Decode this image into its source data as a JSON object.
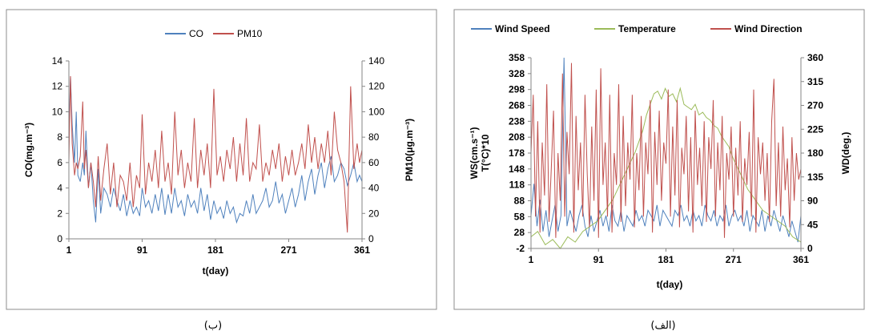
{
  "chart_data": [
    {
      "type": "line",
      "caption": "(ب)",
      "xlabel": "t(day)",
      "ylabel": "CO(mg.m⁻³)",
      "y2label": "PM10(μg.m⁻³)",
      "xlim": [
        1,
        361
      ],
      "ylim": [
        0,
        14
      ],
      "y2lim": [
        0,
        140
      ],
      "xticks": [
        "1",
        "91",
        "181",
        "271",
        "361"
      ],
      "yticks": [
        "0",
        "2",
        "4",
        "6",
        "8",
        "10",
        "12",
        "14"
      ],
      "y2ticks": [
        "0",
        "20",
        "40",
        "60",
        "80",
        "100",
        "120",
        "140"
      ],
      "grid": false,
      "legend_position": "top",
      "series": [
        {
          "name": "CO",
          "axis": "left",
          "color": "#4f81bd",
          "x": [
            1,
            3,
            5,
            8,
            10,
            12,
            15,
            18,
            20,
            22,
            25,
            28,
            31,
            34,
            37,
            40,
            44,
            48,
            52,
            56,
            60,
            64,
            68,
            72,
            76,
            80,
            84,
            88,
            91,
            95,
            99,
            103,
            107,
            111,
            115,
            119,
            123,
            127,
            131,
            135,
            139,
            143,
            147,
            151,
            155,
            159,
            163,
            167,
            171,
            175,
            179,
            183,
            187,
            191,
            195,
            199,
            203,
            207,
            211,
            215,
            219,
            223,
            227,
            231,
            235,
            239,
            243,
            247,
            251,
            255,
            259,
            263,
            267,
            271,
            275,
            279,
            283,
            287,
            291,
            295,
            299,
            303,
            307,
            311,
            315,
            319,
            323,
            327,
            331,
            335,
            339,
            343,
            347,
            351,
            355,
            358,
            361
          ],
          "values": [
            8,
            12.8,
            9,
            6,
            10,
            5,
            4.5,
            6,
            5,
            8.5,
            4,
            6,
            3,
            1.3,
            5.5,
            2,
            4,
            3.5,
            2.5,
            4,
            3,
            2.2,
            3.5,
            1.8,
            3,
            2,
            2.5,
            1.8,
            4,
            2.5,
            3,
            2,
            3.5,
            2.2,
            4,
            1.9,
            3.5,
            2,
            4,
            2.5,
            3,
            1.8,
            3.5,
            2.5,
            3,
            2,
            4,
            2.2,
            3.5,
            1.5,
            3,
            2,
            2.5,
            1.6,
            3,
            2,
            2.5,
            1.3,
            2,
            1.8,
            3,
            2,
            3.5,
            2,
            2.5,
            3,
            4,
            2.5,
            3,
            4.5,
            2.8,
            3.5,
            2,
            3,
            4,
            2.5,
            3.5,
            5,
            3,
            4.5,
            5.5,
            3.5,
            5,
            6,
            4,
            5.5,
            6.5,
            4.5,
            5,
            6,
            5.5,
            4.2,
            5,
            6,
            4.5,
            5,
            4.5
          ]
        },
        {
          "name": "PM10",
          "axis": "right",
          "color": "#c0504d",
          "x": [
            1,
            3,
            5,
            8,
            10,
            12,
            15,
            18,
            20,
            22,
            25,
            28,
            31,
            34,
            37,
            40,
            44,
            48,
            52,
            56,
            60,
            64,
            68,
            72,
            76,
            80,
            84,
            88,
            91,
            95,
            99,
            103,
            107,
            111,
            115,
            119,
            123,
            127,
            131,
            135,
            139,
            143,
            147,
            151,
            155,
            159,
            163,
            167,
            171,
            175,
            179,
            183,
            187,
            191,
            195,
            199,
            203,
            207,
            211,
            215,
            219,
            223,
            227,
            231,
            235,
            239,
            243,
            247,
            251,
            255,
            259,
            263,
            267,
            271,
            275,
            279,
            283,
            287,
            291,
            295,
            299,
            303,
            307,
            311,
            315,
            319,
            323,
            327,
            331,
            335,
            339,
            343,
            347,
            351,
            355,
            358,
            361
          ],
          "values": [
            60,
            128,
            75,
            50,
            60,
            55,
            65,
            108,
            55,
            70,
            40,
            60,
            45,
            25,
            65,
            30,
            55,
            75,
            35,
            60,
            25,
            50,
            45,
            30,
            60,
            25,
            50,
            40,
            98,
            35,
            60,
            45,
            70,
            40,
            85,
            45,
            60,
            35,
            100,
            50,
            70,
            40,
            60,
            45,
            95,
            40,
            70,
            50,
            75,
            40,
            118,
            50,
            65,
            45,
            70,
            55,
            80,
            45,
            75,
            50,
            95,
            45,
            60,
            55,
            90,
            45,
            60,
            50,
            70,
            55,
            75,
            45,
            65,
            50,
            70,
            50,
            60,
            75,
            55,
            90,
            60,
            80,
            55,
            75,
            60,
            85,
            50,
            100,
            70,
            60,
            45,
            5,
            120,
            55,
            75,
            60,
            70
          ]
        }
      ]
    },
    {
      "type": "line",
      "caption": "(الف)",
      "xlabel": "t(day)",
      "ylabel_line1": "WS(cm.s⁻¹)",
      "ylabel_line2": "T(°C)*10",
      "y2label": "WD(deg.)",
      "xlim": [
        1,
        361
      ],
      "ylim": [
        -2,
        358
      ],
      "y2lim": [
        0,
        360
      ],
      "xticks": [
        "1",
        "91",
        "181",
        "271",
        "361"
      ],
      "yticks": [
        "-2",
        "28",
        "58",
        "88",
        "118",
        "148",
        "178",
        "208",
        "238",
        "268",
        "298",
        "328",
        "358"
      ],
      "y2ticks": [
        "0",
        "45",
        "90",
        "135",
        "180",
        "225",
        "270",
        "315",
        "360"
      ],
      "grid": false,
      "legend_position": "top",
      "series": [
        {
          "name": "Wind Speed",
          "axis": "left",
          "color": "#4f81bd",
          "x": [
            1,
            5,
            9,
            13,
            17,
            21,
            25,
            29,
            33,
            37,
            41,
            45,
            49,
            53,
            57,
            61,
            65,
            69,
            73,
            77,
            81,
            85,
            89,
            93,
            97,
            101,
            105,
            109,
            113,
            117,
            121,
            125,
            129,
            133,
            137,
            141,
            145,
            149,
            153,
            157,
            161,
            165,
            169,
            173,
            177,
            181,
            185,
            189,
            193,
            197,
            201,
            205,
            209,
            213,
            217,
            221,
            225,
            229,
            233,
            237,
            241,
            245,
            249,
            253,
            257,
            261,
            265,
            269,
            273,
            277,
            281,
            285,
            289,
            293,
            297,
            301,
            305,
            309,
            313,
            317,
            321,
            325,
            329,
            333,
            337,
            341,
            345,
            349,
            353,
            357,
            361
          ],
          "values": [
            60,
            120,
            40,
            90,
            30,
            70,
            20,
            50,
            80,
            30,
            60,
            365,
            40,
            70,
            50,
            30,
            60,
            80,
            40,
            20,
            60,
            30,
            50,
            70,
            40,
            60,
            30,
            80,
            50,
            40,
            70,
            30,
            60,
            50,
            40,
            70,
            50,
            60,
            40,
            70,
            60,
            50,
            80,
            40,
            70,
            60,
            50,
            40,
            70,
            60,
            80,
            50,
            60,
            40,
            70,
            50,
            60,
            40,
            80,
            60,
            50,
            70,
            40,
            60,
            50,
            80,
            40,
            60,
            70,
            50,
            60,
            40,
            70,
            30,
            60,
            50,
            40,
            70,
            30,
            60,
            40,
            70,
            50,
            30,
            60,
            40,
            20,
            50,
            30,
            10,
            60
          ]
        },
        {
          "name": "Temperature",
          "axis": "left",
          "color": "#9bbb59",
          "x": [
            1,
            10,
            20,
            30,
            40,
            50,
            60,
            70,
            80,
            90,
            100,
            110,
            120,
            130,
            140,
            150,
            155,
            160,
            165,
            170,
            175,
            180,
            185,
            190,
            195,
            200,
            205,
            210,
            215,
            220,
            225,
            230,
            235,
            240,
            245,
            250,
            255,
            260,
            265,
            270,
            280,
            290,
            300,
            310,
            320,
            330,
            340,
            350,
            361
          ],
          "values": [
            20,
            30,
            5,
            15,
            -2,
            20,
            10,
            30,
            40,
            50,
            70,
            90,
            120,
            150,
            180,
            220,
            250,
            270,
            290,
            295,
            280,
            300,
            285,
            290,
            275,
            300,
            270,
            265,
            260,
            270,
            250,
            255,
            245,
            240,
            230,
            225,
            210,
            200,
            190,
            170,
            140,
            110,
            90,
            70,
            60,
            50,
            40,
            20,
            10
          ]
        },
        {
          "name": "Wind Direction",
          "axis": "right",
          "color": "#c0504d",
          "x": [
            1,
            4,
            7,
            10,
            13,
            16,
            19,
            22,
            25,
            28,
            31,
            34,
            37,
            40,
            43,
            46,
            49,
            52,
            55,
            58,
            61,
            64,
            67,
            70,
            73,
            76,
            79,
            82,
            85,
            88,
            91,
            94,
            97,
            100,
            103,
            106,
            109,
            112,
            115,
            118,
            121,
            124,
            127,
            130,
            133,
            136,
            139,
            142,
            145,
            148,
            151,
            154,
            157,
            160,
            163,
            166,
            169,
            172,
            175,
            178,
            181,
            184,
            187,
            190,
            193,
            196,
            199,
            202,
            205,
            208,
            211,
            214,
            217,
            220,
            223,
            226,
            229,
            232,
            235,
            238,
            241,
            244,
            247,
            250,
            253,
            256,
            259,
            262,
            265,
            268,
            271,
            274,
            277,
            280,
            283,
            286,
            289,
            292,
            295,
            298,
            301,
            304,
            307,
            310,
            313,
            316,
            319,
            322,
            325,
            328,
            331,
            334,
            337,
            340,
            343,
            346,
            349,
            352,
            355,
            358,
            361
          ],
          "values": [
            180,
            290,
            60,
            240,
            30,
            200,
            100,
            310,
            50,
            150,
            260,
            20,
            180,
            90,
            330,
            60,
            220,
            140,
            350,
            30,
            250,
            110,
            200,
            60,
            290,
            140,
            40,
            230,
            90,
            300,
            20,
            340,
            120,
            200,
            60,
            290,
            30,
            180,
            120,
            310,
            50,
            250,
            80,
            200,
            130,
            290,
            40,
            180,
            110,
            250,
            60,
            200,
            140,
            280,
            30,
            220,
            120,
            260,
            90,
            200,
            160,
            300,
            60,
            230,
            100,
            280,
            40,
            190,
            140,
            250,
            70,
            210,
            30,
            260,
            120,
            190,
            80,
            240,
            50,
            210,
            150,
            280,
            60,
            200,
            110,
            250,
            20,
            180,
            130,
            230,
            60,
            190,
            100,
            240,
            50,
            170,
            120,
            220,
            60,
            300,
            30,
            210,
            140,
            200,
            90,
            180,
            50,
            240,
            320,
            80,
            200,
            60,
            230,
            110,
            170,
            40,
            210,
            90,
            180,
            130,
            150
          ]
        }
      ]
    }
  ]
}
